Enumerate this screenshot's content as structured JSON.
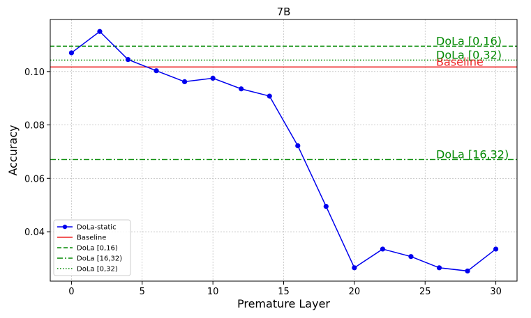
{
  "chart_data": {
    "type": "line",
    "title": "7B",
    "xlabel": "Premature Layer",
    "ylabel": "Accuracy",
    "xlim": [
      -1.5,
      31.5
    ],
    "ylim": [
      0.0215,
      0.1195
    ],
    "x_ticks": [
      0,
      5,
      10,
      15,
      20,
      25,
      30
    ],
    "y_ticks": [
      0.04,
      0.06,
      0.08,
      0.1
    ],
    "y_tick_labels": [
      "0.04",
      "0.06",
      "0.08",
      "0.10"
    ],
    "grid": true,
    "legend_position": "lower-left",
    "series": [
      {
        "name": "DoLa-static",
        "color": "#0000ee",
        "marker": "circle",
        "x": [
          0,
          2,
          4,
          6,
          8,
          10,
          12,
          14,
          16,
          18,
          20,
          22,
          24,
          26,
          28,
          30
        ],
        "y": [
          0.107,
          0.115,
          0.1045,
          0.1003,
          0.0962,
          0.0975,
          0.0935,
          0.0908,
          0.0722,
          0.0495,
          0.0265,
          0.0335,
          0.0307,
          0.0265,
          0.0253,
          0.0335
        ]
      }
    ],
    "reference_lines": [
      {
        "name": "Baseline",
        "label": "Baseline",
        "y": 0.1017,
        "color": "#ee2222",
        "style": "solid"
      },
      {
        "name": "DoLa [0,16)",
        "label": "DoLa [0,16)",
        "y": 0.1095,
        "color": "#008800",
        "style": "dashed"
      },
      {
        "name": "DoLa [16,32)",
        "label": "DoLa [16,32)",
        "y": 0.067,
        "color": "#008800",
        "style": "dashdot"
      },
      {
        "name": "DoLa [0,32)",
        "label": "DoLa [0,32)",
        "y": 0.1043,
        "color": "#008800",
        "style": "dotted"
      }
    ]
  }
}
